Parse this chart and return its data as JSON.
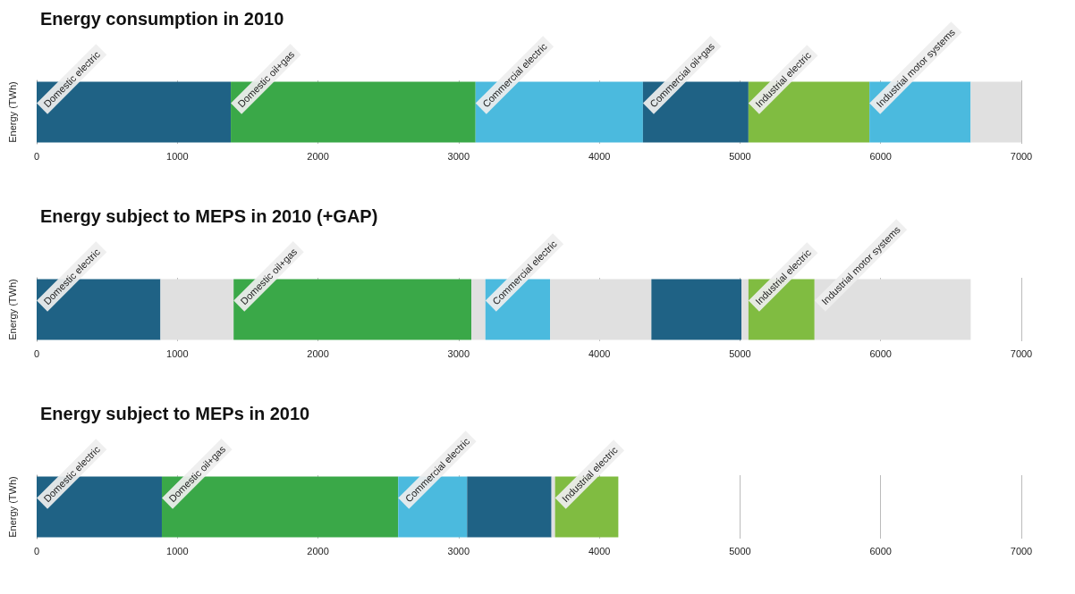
{
  "chart_data": [
    {
      "type": "bar",
      "title": "Energy consumption in 2010",
      "ylabel": "Energy (TWh)",
      "orientation": "horizontal",
      "stacked": true,
      "categories": [
        null
      ],
      "xlim": [
        0,
        7000
      ],
      "xticks": [
        0,
        1000,
        2000,
        3000,
        4000,
        5000,
        6000,
        7000
      ],
      "grid": "x",
      "series": [
        {
          "name": "Domestic electric",
          "color": "#1f6285",
          "values": [
            1380
          ]
        },
        {
          "name": "Domestic oil+gas",
          "color": "#3aa848",
          "values": [
            1740
          ]
        },
        {
          "name": "Commercial electric",
          "color": "#4bbade",
          "values": [
            1190
          ]
        },
        {
          "name": "Commercial oil+gas",
          "color": "#1f6285",
          "values": [
            750
          ]
        },
        {
          "name": "Industrial electric",
          "color": "#80bc41",
          "values": [
            860
          ]
        },
        {
          "name": "Industrial motor systems",
          "color": "#4bbade",
          "values": [
            720
          ]
        },
        {
          "color": "#e0e0e0",
          "values": [
            360
          ]
        }
      ]
    },
    {
      "type": "bar",
      "title": "Energy subject to MEPS in 2010 (+GAP)",
      "ylabel": "Energy (TWh)",
      "orientation": "horizontal",
      "stacked": true,
      "categories": [
        null
      ],
      "xlim": [
        0,
        7000
      ],
      "xticks": [
        0,
        1000,
        2000,
        3000,
        4000,
        5000,
        6000,
        7000
      ],
      "grid": "x",
      "series": [
        {
          "name": "Domestic electric",
          "color": "#1f6285",
          "values": [
            880
          ]
        },
        {
          "color": "#e0e0e0",
          "values": [
            520
          ]
        },
        {
          "name": "Domestic oil+gas",
          "color": "#3aa848",
          "values": [
            1690
          ]
        },
        {
          "color": "#e0e0e0",
          "values": [
            100
          ]
        },
        {
          "name": "Commercial electric",
          "color": "#4bbade",
          "values": [
            460
          ]
        },
        {
          "color": "#e0e0e0",
          "values": [
            720
          ]
        },
        {
          "color": "#1f6285",
          "values": [
            640
          ]
        },
        {
          "color": "#e0e0e0",
          "values": [
            50
          ]
        },
        {
          "name": "Industrial electric",
          "color": "#80bc41",
          "values": [
            470
          ]
        },
        {
          "name": "Industrial motor systems",
          "color": "#e0e0e0",
          "values": [
            1110
          ]
        }
      ]
    },
    {
      "type": "bar",
      "title": "Energy subject to MEPs in 2010",
      "ylabel": "Energy (TWh)",
      "orientation": "horizontal",
      "stacked": true,
      "categories": [
        null
      ],
      "xlim": [
        0,
        7000
      ],
      "xticks": [
        0,
        1000,
        2000,
        3000,
        4000,
        5000,
        6000,
        7000
      ],
      "grid": "x",
      "series": [
        {
          "name": "Domestic electric",
          "color": "#1f6285",
          "values": [
            890
          ]
        },
        {
          "name": "Domestic oil+gas",
          "color": "#3aa848",
          "values": [
            1680
          ]
        },
        {
          "name": "Commercial electric",
          "color": "#4bbade",
          "values": [
            490
          ]
        },
        {
          "color": "#1f6285",
          "values": [
            600
          ]
        },
        {
          "color": "#e0e0e0",
          "values": [
            25
          ]
        },
        {
          "name": "Industrial electric",
          "color": "#80bc41",
          "values": [
            450
          ]
        }
      ]
    }
  ]
}
